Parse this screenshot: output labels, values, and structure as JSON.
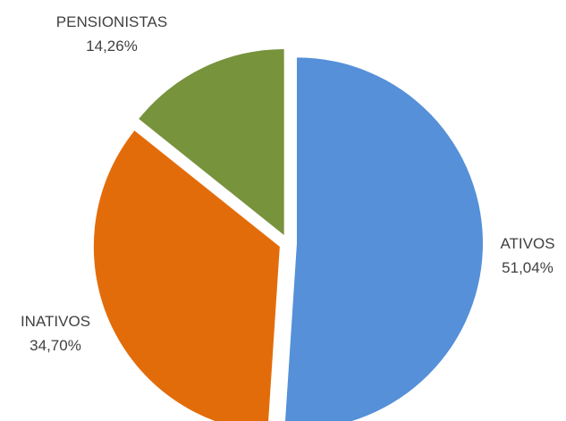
{
  "chart_data": {
    "type": "pie",
    "title": "",
    "slices": [
      {
        "label": "ATIVOS",
        "value": 51.04,
        "value_label": "51,04%",
        "color": "#5590d8"
      },
      {
        "label": "INATIVOS",
        "value": 34.7,
        "value_label": "34,70%",
        "color": "#e36c0a"
      },
      {
        "label": "PENSIONISTAS",
        "value": 14.26,
        "value_label": "14,26%",
        "color": "#77933c"
      }
    ],
    "start_angle_deg": 0,
    "direction": "clockwise",
    "exploded": true,
    "legend": "none"
  }
}
